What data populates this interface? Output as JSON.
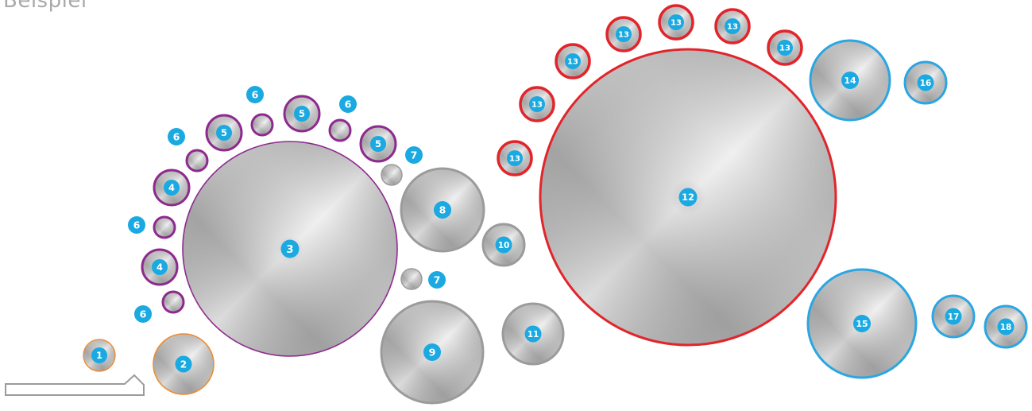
{
  "title": "Beispiel",
  "colors": {
    "badge": "#1ba9e1",
    "orange": "#ef8a2b",
    "purple": "#8e2a8f",
    "gray": "#9b9b9b",
    "red": "#e2242b",
    "blue": "#2aa6e2",
    "metal_light": "#f2f2f2",
    "metal_dark": "#8c8c8c"
  },
  "rollers": [
    {
      "id": "roller-1",
      "label": "1",
      "group": "orange"
    },
    {
      "id": "roller-2",
      "label": "2",
      "group": "orange"
    },
    {
      "id": "roller-3",
      "label": "3",
      "group": "purple"
    },
    {
      "id": "roller-4a",
      "label": "4",
      "group": "purple"
    },
    {
      "id": "roller-4b",
      "label": "4",
      "group": "purple"
    },
    {
      "id": "roller-5a",
      "label": "5",
      "group": "purple"
    },
    {
      "id": "roller-5b",
      "label": "5",
      "group": "purple"
    },
    {
      "id": "roller-5c",
      "label": "5",
      "group": "purple"
    },
    {
      "id": "roller-6a",
      "label": "6",
      "group": "purple"
    },
    {
      "id": "roller-6b",
      "label": "6",
      "group": "purple"
    },
    {
      "id": "roller-6c",
      "label": "6",
      "group": "purple"
    },
    {
      "id": "roller-6d",
      "label": "6",
      "group": "purple"
    },
    {
      "id": "roller-6e",
      "label": "6",
      "group": "purple"
    },
    {
      "id": "roller-7a",
      "label": "7",
      "group": "gray"
    },
    {
      "id": "roller-7b",
      "label": "7",
      "group": "gray"
    },
    {
      "id": "roller-8",
      "label": "8",
      "group": "gray"
    },
    {
      "id": "roller-9",
      "label": "9",
      "group": "gray"
    },
    {
      "id": "roller-10",
      "label": "10",
      "group": "gray"
    },
    {
      "id": "roller-11",
      "label": "11",
      "group": "gray"
    },
    {
      "id": "roller-12",
      "label": "12",
      "group": "red"
    },
    {
      "id": "roller-13a",
      "label": "13",
      "group": "red"
    },
    {
      "id": "roller-13b",
      "label": "13",
      "group": "red"
    },
    {
      "id": "roller-13c",
      "label": "13",
      "group": "red"
    },
    {
      "id": "roller-13d",
      "label": "13",
      "group": "red"
    },
    {
      "id": "roller-13e",
      "label": "13",
      "group": "red"
    },
    {
      "id": "roller-13f",
      "label": "13",
      "group": "red"
    },
    {
      "id": "roller-13g",
      "label": "13",
      "group": "red"
    },
    {
      "id": "roller-14",
      "label": "14",
      "group": "blue"
    },
    {
      "id": "roller-15",
      "label": "15",
      "group": "blue"
    },
    {
      "id": "roller-16",
      "label": "16",
      "group": "blue"
    },
    {
      "id": "roller-17",
      "label": "17",
      "group": "blue"
    },
    {
      "id": "roller-18",
      "label": "18",
      "group": "blue"
    }
  ],
  "standalone_badges": [
    {
      "id": "label-6-a",
      "label": "6"
    },
    {
      "id": "label-6-b",
      "label": "6"
    },
    {
      "id": "label-6-c",
      "label": "6"
    },
    {
      "id": "label-6-d",
      "label": "6"
    },
    {
      "id": "label-6-e",
      "label": "6"
    },
    {
      "id": "label-7-a",
      "label": "7"
    },
    {
      "id": "label-7-b",
      "label": "7"
    }
  ]
}
